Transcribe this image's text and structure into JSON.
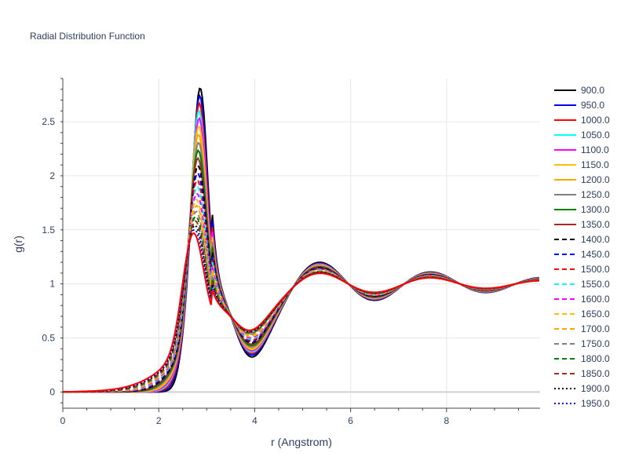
{
  "chart_data": {
    "type": "line",
    "title": "Radial Distribution Function",
    "xlabel": "r (Angstrom)",
    "ylabel": "g(r)",
    "xlim": [
      0,
      9.95
    ],
    "ylim": [
      -0.15,
      2.9
    ],
    "x_ticks": [
      0,
      2,
      4,
      6,
      8
    ],
    "y_ticks": [
      0,
      0.5,
      1,
      1.5,
      2,
      2.5
    ],
    "x_tick_labels": [
      "0",
      "2",
      "4",
      "6",
      "8"
    ],
    "y_tick_labels": [
      "0",
      "0.5",
      "1",
      "1.5",
      "2",
      "2.5"
    ],
    "grid": true,
    "legend_position": "right",
    "series_params": {
      "note_x_range": [
        0,
        9.95
      ]
    },
    "series": [
      {
        "name": "900.0",
        "color": "#000000",
        "dash": "solid",
        "peak_r": 2.86,
        "peak_g": 2.75
      },
      {
        "name": "950.0",
        "color": "#0000ff",
        "dash": "solid",
        "peak_r": 2.85,
        "peak_g": 2.69
      },
      {
        "name": "1000.0",
        "color": "#ff0000",
        "dash": "solid",
        "peak_r": 2.84,
        "peak_g": 2.64
      },
      {
        "name": "1050.0",
        "color": "#00ffff",
        "dash": "solid",
        "peak_r": 2.83,
        "peak_g": 2.6
      },
      {
        "name": "1100.0",
        "color": "#ff00ff",
        "dash": "solid",
        "peak_r": 2.83,
        "peak_g": 2.56
      },
      {
        "name": "1150.0",
        "color": "#ffc000",
        "dash": "solid",
        "peak_r": 2.82,
        "peak_g": 2.52
      },
      {
        "name": "1200.0",
        "color": "#ffa500",
        "dash": "solid",
        "peak_r": 2.81,
        "peak_g": 2.48
      },
      {
        "name": "1250.0",
        "color": "#808080",
        "dash": "solid",
        "peak_r": 2.81,
        "peak_g": 2.44
      },
      {
        "name": "1300.0",
        "color": "#008000",
        "dash": "solid",
        "peak_r": 2.8,
        "peak_g": 2.4
      },
      {
        "name": "1350.0",
        "color": "#a52a2a",
        "dash": "solid",
        "peak_r": 2.79,
        "peak_g": 2.36
      },
      {
        "name": "1400.0",
        "color": "#000000",
        "dash": "dash",
        "peak_r": 2.79,
        "peak_g": 2.32
      },
      {
        "name": "1450.0",
        "color": "#0000ff",
        "dash": "dash",
        "peak_r": 2.78,
        "peak_g": 2.28
      },
      {
        "name": "1500.0",
        "color": "#ff0000",
        "dash": "dash",
        "peak_r": 2.77,
        "peak_g": 2.24
      },
      {
        "name": "1550.0",
        "color": "#00ffff",
        "dash": "dash",
        "peak_r": 2.77,
        "peak_g": 2.2
      },
      {
        "name": "1600.0",
        "color": "#ff00ff",
        "dash": "dash",
        "peak_r": 2.76,
        "peak_g": 2.16
      },
      {
        "name": "1650.0",
        "color": "#ffc000",
        "dash": "dash",
        "peak_r": 2.75,
        "peak_g": 2.12
      },
      {
        "name": "1700.0",
        "color": "#ffa500",
        "dash": "dash",
        "peak_r": 2.75,
        "peak_g": 2.08
      },
      {
        "name": "1750.0",
        "color": "#808080",
        "dash": "dash",
        "peak_r": 2.74,
        "peak_g": 2.04
      },
      {
        "name": "1800.0",
        "color": "#008000",
        "dash": "dash",
        "peak_r": 2.73,
        "peak_g": 2.01
      },
      {
        "name": "1850.0",
        "color": "#a52a2a",
        "dash": "dash",
        "peak_r": 2.72,
        "peak_g": 1.98
      },
      {
        "name": "1900.0",
        "color": "#000000",
        "dash": "dot",
        "peak_r": 2.71,
        "peak_g": 1.95
      },
      {
        "name": "1950.0",
        "color": "#0000ff",
        "dash": "dot",
        "peak_r": 2.7,
        "peak_g": 1.92
      },
      {
        "name": "",
        "color": "#ff0000",
        "dash": "solid",
        "peak_r": 2.68,
        "peak_g": 1.9,
        "hidden_legend": true
      }
    ]
  }
}
